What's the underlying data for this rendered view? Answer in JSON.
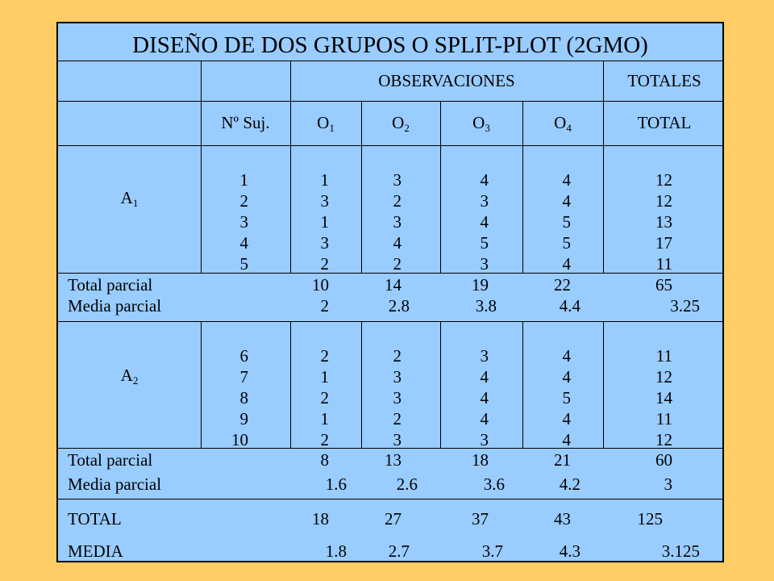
{
  "title": "DISEÑO DE DOS GRUPOS O SPLIT-PLOT (2GMO)",
  "header1": {
    "observaciones": "OBSERVACIONES",
    "totales": "TOTALES"
  },
  "header2": {
    "n_suj": "Nº Suj.",
    "o": "O",
    "o1_sub": "1",
    "o2_sub": "2",
    "o3_sub": "3",
    "o4_sub": "4",
    "total": "TOTAL"
  },
  "groups": [
    {
      "label": "A",
      "label_sub": "1",
      "subjects": [
        "1",
        "2",
        "3",
        "4",
        "5"
      ],
      "o1": [
        "1",
        "3",
        "1",
        "3",
        "2"
      ],
      "o2": [
        "3",
        "2",
        "3",
        "4",
        "2"
      ],
      "o3": [
        "4",
        "3",
        "4",
        "5",
        "3"
      ],
      "o4": [
        "4",
        "4",
        "5",
        "5",
        "4"
      ],
      "total": [
        "12",
        "12",
        "13",
        "17",
        "11"
      ],
      "total_parcial_label": "Total parcial",
      "media_parcial_label": "Media parcial",
      "total_parcial": [
        "10",
        "14",
        "19",
        "22",
        "65"
      ],
      "media_parcial": [
        "2",
        "2.8",
        "3.8",
        "4.4",
        "3.25"
      ]
    },
    {
      "label": "A",
      "label_sub": "2",
      "subjects": [
        "6",
        "7",
        "8",
        "9",
        "10"
      ],
      "o1": [
        "2",
        "1",
        "2",
        "1",
        "2"
      ],
      "o2": [
        "2",
        "3",
        "3",
        "2",
        "3"
      ],
      "o3": [
        "3",
        "4",
        "4",
        "4",
        "3"
      ],
      "o4": [
        "4",
        "4",
        "5",
        "4",
        "4"
      ],
      "total": [
        "11",
        "12",
        "14",
        "11",
        "12"
      ],
      "total_parcial_label": "Total parcial",
      "media_parcial_label": "Media parcial",
      "total_parcial": [
        "8",
        "13",
        "18",
        "21",
        "60"
      ],
      "media_parcial": [
        "1.6",
        "2.6",
        "3.6",
        "4.2",
        "3"
      ]
    }
  ],
  "footer": {
    "total_label": "TOTAL",
    "media_label": "MEDIA",
    "total": [
      "18",
      "27",
      "37",
      "43",
      "125"
    ],
    "media": [
      "1.8",
      "2.7",
      "3.7",
      "4.3",
      "3.125"
    ]
  }
}
